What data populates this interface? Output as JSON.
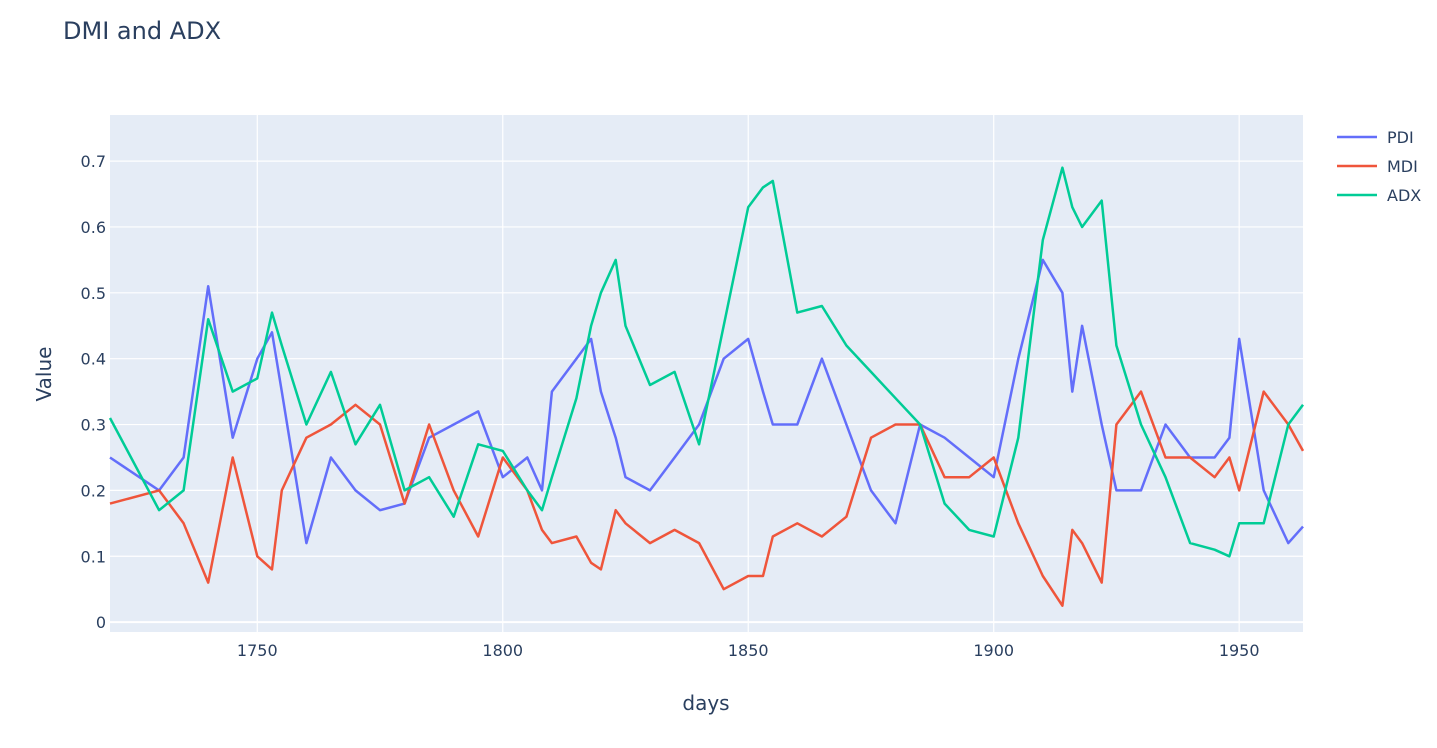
{
  "chart_data": {
    "type": "line",
    "title": "DMI and ADX",
    "xlabel": "days",
    "ylabel": "Value",
    "xlim": [
      1720,
      1963
    ],
    "ylim": [
      -0.015,
      0.77
    ],
    "xticks": [
      1750,
      1800,
      1850,
      1900,
      1950
    ],
    "yticks": [
      0,
      0.1,
      0.2,
      0.3,
      0.4,
      0.5,
      0.6,
      0.7
    ],
    "ytick_labels": [
      "0",
      "0.1",
      "0.2",
      "0.3",
      "0.4",
      "0.5",
      "0.6",
      "0.7"
    ],
    "grid": true,
    "legend_position": "top-right",
    "background": "#e5ecf6",
    "x": [
      1720,
      1730,
      1735,
      1740,
      1745,
      1750,
      1753,
      1755,
      1760,
      1765,
      1770,
      1775,
      1780,
      1785,
      1790,
      1795,
      1800,
      1805,
      1808,
      1810,
      1815,
      1818,
      1820,
      1823,
      1825,
      1830,
      1835,
      1840,
      1845,
      1850,
      1853,
      1855,
      1860,
      1865,
      1870,
      1875,
      1880,
      1885,
      1890,
      1895,
      1900,
      1905,
      1910,
      1914,
      1916,
      1918,
      1922,
      1925,
      1930,
      1935,
      1940,
      1945,
      1948,
      1950,
      1955,
      1960,
      1963
    ],
    "series": [
      {
        "name": "PDI",
        "color": "#636efa",
        "values": [
          0.25,
          0.2,
          0.25,
          0.51,
          0.28,
          0.4,
          0.44,
          0.35,
          0.12,
          0.25,
          0.2,
          0.17,
          0.18,
          0.28,
          0.3,
          0.32,
          0.22,
          0.25,
          0.2,
          0.35,
          0.4,
          0.43,
          0.35,
          0.28,
          0.22,
          0.2,
          0.25,
          0.3,
          0.4,
          0.43,
          0.35,
          0.3,
          0.3,
          0.4,
          0.3,
          0.2,
          0.15,
          0.3,
          0.28,
          0.25,
          0.22,
          0.4,
          0.55,
          0.5,
          0.35,
          0.45,
          0.3,
          0.2,
          0.2,
          0.3,
          0.25,
          0.25,
          0.28,
          0.43,
          0.2,
          0.12,
          0.145
        ]
      },
      {
        "name": "MDI",
        "color": "#ef553b",
        "values": [
          0.18,
          0.2,
          0.15,
          0.06,
          0.25,
          0.1,
          0.08,
          0.2,
          0.28,
          0.3,
          0.33,
          0.3,
          0.18,
          0.3,
          0.2,
          0.13,
          0.25,
          0.2,
          0.14,
          0.12,
          0.13,
          0.09,
          0.08,
          0.17,
          0.15,
          0.12,
          0.14,
          0.12,
          0.05,
          0.07,
          0.07,
          0.13,
          0.15,
          0.13,
          0.16,
          0.28,
          0.3,
          0.3,
          0.22,
          0.22,
          0.25,
          0.15,
          0.07,
          0.025,
          0.14,
          0.12,
          0.06,
          0.3,
          0.35,
          0.25,
          0.25,
          0.22,
          0.25,
          0.2,
          0.35,
          0.3,
          0.26
        ]
      },
      {
        "name": "ADX",
        "color": "#00cc96",
        "values": [
          0.31,
          0.17,
          0.2,
          0.46,
          0.35,
          0.37,
          0.47,
          0.42,
          0.3,
          0.38,
          0.27,
          0.33,
          0.2,
          0.22,
          0.16,
          0.27,
          0.26,
          0.2,
          0.17,
          0.22,
          0.34,
          0.45,
          0.5,
          0.55,
          0.45,
          0.36,
          0.38,
          0.27,
          0.45,
          0.63,
          0.66,
          0.67,
          0.47,
          0.48,
          0.42,
          0.38,
          0.34,
          0.3,
          0.18,
          0.14,
          0.13,
          0.28,
          0.58,
          0.69,
          0.63,
          0.6,
          0.64,
          0.42,
          0.3,
          0.22,
          0.12,
          0.11,
          0.1,
          0.15,
          0.15,
          0.3,
          0.33
        ]
      }
    ]
  }
}
